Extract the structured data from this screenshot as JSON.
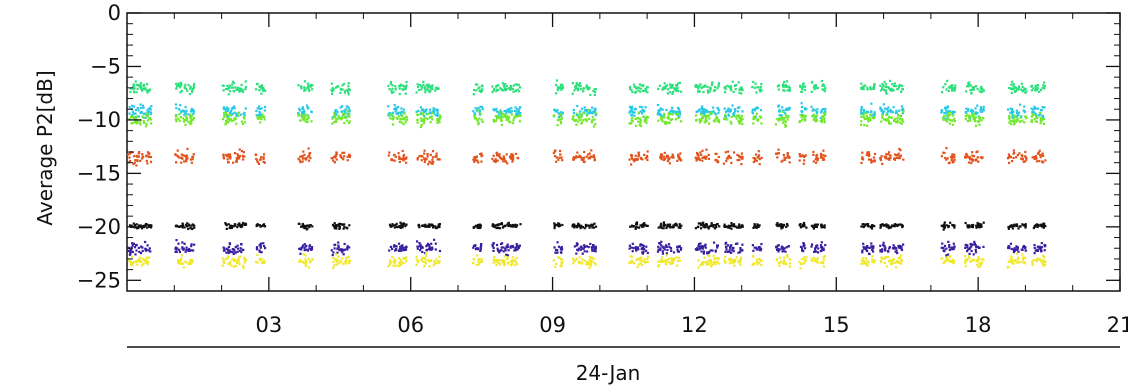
{
  "chart_data": {
    "type": "scatter",
    "title": "",
    "ylabel": "Average  P2[dB]",
    "xlabel": "24-Jan",
    "xlim": [
      0,
      21
    ],
    "ylim": [
      -26,
      0
    ],
    "x_ticks": [
      3,
      6,
      9,
      12,
      15,
      18,
      21
    ],
    "x_tick_labels": [
      "03",
      "06",
      "09",
      "12",
      "15",
      "18",
      "21"
    ],
    "y_ticks": [
      0,
      -5,
      -10,
      -15,
      -20,
      -25
    ],
    "y_tick_labels": [
      "0",
      "−5",
      "−10",
      "−15",
      "−20",
      "−25"
    ],
    "grid": false,
    "x_unit": "hour of day",
    "time_blocks": [
      [
        0.0,
        0.5
      ],
      [
        1.0,
        1.4
      ],
      [
        2.0,
        2.5
      ],
      [
        2.7,
        2.9
      ],
      [
        3.6,
        3.9
      ],
      [
        4.3,
        4.7
      ],
      [
        5.5,
        5.9
      ],
      [
        6.1,
        6.6
      ],
      [
        7.3,
        7.5
      ],
      [
        7.7,
        8.3
      ],
      [
        9.0,
        9.2
      ],
      [
        9.4,
        9.9
      ],
      [
        10.6,
        11.0
      ],
      [
        11.2,
        11.7
      ],
      [
        12.0,
        12.5
      ],
      [
        12.6,
        13.0
      ],
      [
        13.2,
        13.4
      ],
      [
        13.7,
        14.0
      ],
      [
        14.2,
        14.35
      ],
      [
        14.45,
        14.6
      ],
      [
        14.65,
        14.75
      ],
      [
        15.5,
        15.8
      ],
      [
        15.9,
        16.4
      ],
      [
        17.2,
        17.5
      ],
      [
        17.7,
        18.1
      ],
      [
        18.6,
        19.0
      ],
      [
        19.1,
        19.4
      ]
    ],
    "series": [
      {
        "color": "#2be07a",
        "mean": -6.9,
        "spread": 0.45
      },
      {
        "color": "#26c8e6",
        "mean": -9.1,
        "spread": 0.45
      },
      {
        "color": "#72e82a",
        "mean": -9.8,
        "spread": 0.5
      },
      {
        "color": "#e2521c",
        "mean": -13.4,
        "spread": 0.5
      },
      {
        "color": "#111111",
        "mean": -19.8,
        "spread": 0.22
      },
      {
        "color": "#3a1ea0",
        "mean": -21.9,
        "spread": 0.45
      },
      {
        "color": "#f0e82a",
        "mean": -23.1,
        "spread": 0.45
      }
    ]
  }
}
